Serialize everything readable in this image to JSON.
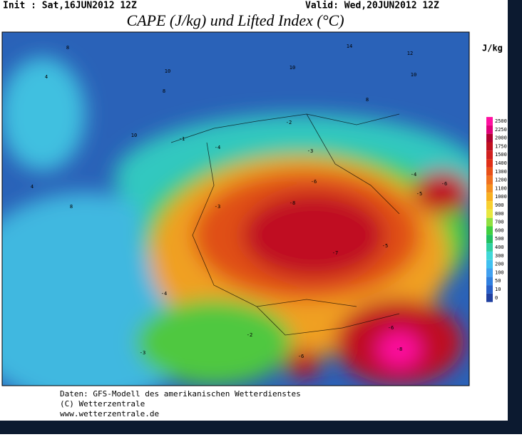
{
  "header": {
    "init": "Init : Sat,16JUN2012 12Z",
    "valid": "Valid: Wed,20JUN2012 12Z",
    "title": "CAPE (J/kg) und Lifted Index (°C)"
  },
  "colorbar": {
    "unit": "J/kg",
    "labels": [
      2500,
      2250,
      2000,
      1750,
      1500,
      1400,
      1300,
      1200,
      1100,
      1000,
      900,
      800,
      700,
      600,
      500,
      400,
      300,
      200,
      100,
      50,
      10,
      0
    ],
    "colors": [
      "#ff10a0",
      "#e0007a",
      "#b00030",
      "#c01020",
      "#d02020",
      "#e03018",
      "#e85018",
      "#f07020",
      "#f59020",
      "#f8b020",
      "#f8d030",
      "#e8e840",
      "#90e040",
      "#40d040",
      "#20c060",
      "#30d0a0",
      "#40d8d8",
      "#40c0f0",
      "#40a0f0",
      "#3080e0",
      "#2860c8",
      "#2040a0"
    ]
  },
  "map_labels": [
    "8",
    "4",
    "10",
    "8",
    "10",
    "8",
    "14",
    "12",
    "10",
    "8",
    "10",
    "4",
    "-1",
    "-2",
    "-3",
    "-4",
    "-3",
    "-6",
    "-8",
    "-7",
    "-6",
    "-5",
    "-4",
    "-5",
    "-6",
    "-8",
    "-6",
    "-4",
    "-3",
    "-2"
  ],
  "footer": {
    "line1": "Daten: GFS-Modell des amerikanischen Wetterdienstes",
    "line2": "(C) Wetterzentrale",
    "line3": "www.wetterzentrale.de"
  }
}
